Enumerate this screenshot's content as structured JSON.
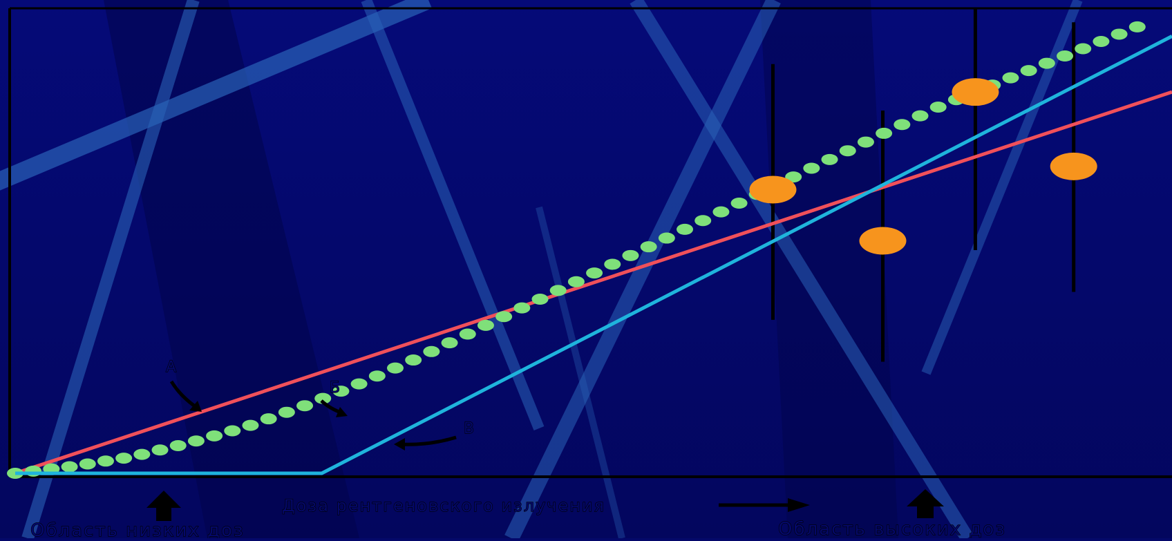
{
  "chart_data": {
    "type": "line",
    "title": "",
    "xlabel": "Доза рентгеновского излучения",
    "ylabel": "",
    "xlim": [
      0,
      100
    ],
    "ylim": [
      0,
      100
    ],
    "grid": false,
    "series": [
      {
        "key": "a",
        "name": "А",
        "color": "#f0505a",
        "style": "solid",
        "x": [
          0,
          100
        ],
        "y": [
          0,
          82
        ]
      },
      {
        "key": "b",
        "name": "Б",
        "color": "#7fe07a",
        "style": "dots",
        "x": [
          0,
          5,
          10,
          15,
          20,
          25,
          30,
          35,
          40,
          45,
          50,
          55,
          60,
          65,
          70,
          75,
          80,
          85,
          90,
          95,
          97
        ],
        "y": [
          0,
          1.5,
          3.5,
          6.5,
          10,
          14.5,
          19.5,
          25,
          31,
          37,
          43,
          49,
          55,
          61,
          67,
          73,
          79,
          84,
          89,
          94,
          96
        ]
      },
      {
        "key": "v",
        "name": "В",
        "color": "#1fb4dc",
        "style": "solid",
        "x": [
          0,
          26.5,
          100
        ],
        "y": [
          0,
          0,
          94
        ]
      }
    ],
    "error_points": [
      {
        "x": 65.5,
        "y": 61,
        "low": 33,
        "high": 88
      },
      {
        "x": 75,
        "y": 50,
        "low": 24,
        "high": 78
      },
      {
        "x": 83,
        "y": 82,
        "low": 48,
        "high": 100
      },
      {
        "x": 91.5,
        "y": 66,
        "low": 39,
        "high": 97
      }
    ],
    "point_color": "#f7941d",
    "annotations": {
      "low_dose_region": "Область низких доз",
      "high_dose_region": "Область высоких доз"
    }
  }
}
